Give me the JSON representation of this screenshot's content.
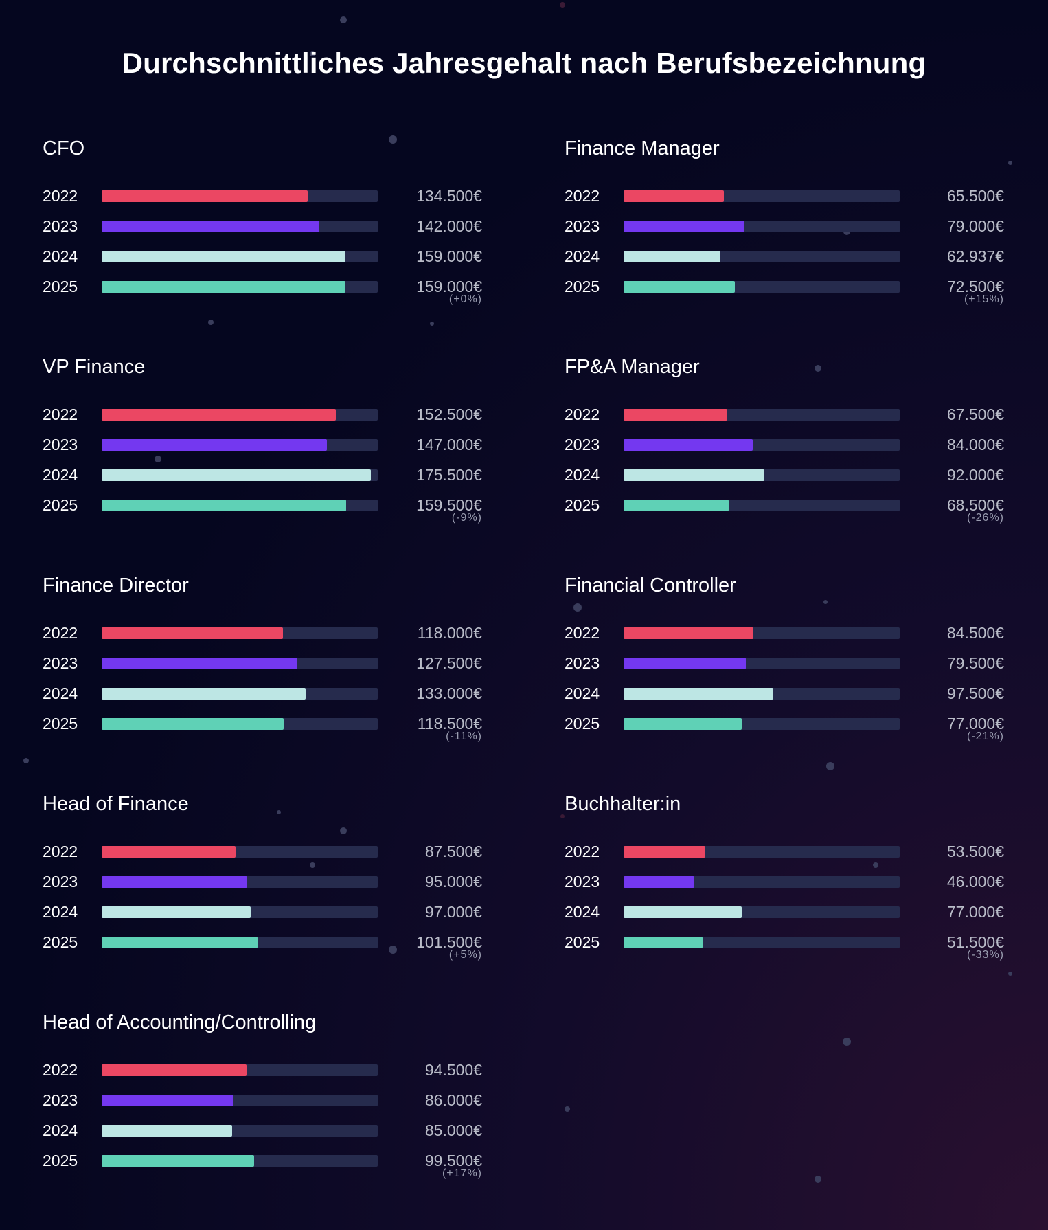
{
  "title": "Durchschnittliches Jahresgehalt nach Berufsbezeichnung",
  "colors": {
    "background": "#05061f",
    "track": "#262b4d",
    "2022": "#eb4763",
    "2023": "#7438f0",
    "2024": "#bde6e4",
    "2025": "#5fd1b6"
  },
  "chart_data": [
    {
      "type": "bar",
      "orientation": "horizontal",
      "title": "CFO",
      "categories": [
        "2022",
        "2023",
        "2024",
        "2025"
      ],
      "values": [
        134500,
        142000,
        159000,
        159000
      ],
      "value_labels": [
        "134.500€",
        "142.000€",
        "159.000€",
        "159.000€"
      ],
      "change_label": "(+0%)",
      "xlim": [
        0,
        180000
      ]
    },
    {
      "type": "bar",
      "orientation": "horizontal",
      "title": "Finance Manager",
      "categories": [
        "2022",
        "2023",
        "2024",
        "2025"
      ],
      "values": [
        65500,
        79000,
        62937,
        72500
      ],
      "value_labels": [
        "65.500€",
        "79.000€",
        "62.937€",
        "72.500€"
      ],
      "change_label": "(+15%)",
      "xlim": [
        0,
        180000
      ]
    },
    {
      "type": "bar",
      "orientation": "horizontal",
      "title": "VP Finance",
      "categories": [
        "2022",
        "2023",
        "2024",
        "2025"
      ],
      "values": [
        152500,
        147000,
        175500,
        159500
      ],
      "value_labels": [
        "152.500€",
        "147.000€",
        "175.500€",
        "159.500€"
      ],
      "change_label": "(-9%)",
      "xlim": [
        0,
        180000
      ]
    },
    {
      "type": "bar",
      "orientation": "horizontal",
      "title": "FP&A Manager",
      "categories": [
        "2022",
        "2023",
        "2024",
        "2025"
      ],
      "values": [
        67500,
        84000,
        92000,
        68500
      ],
      "value_labels": [
        "67.500€",
        "84.000€",
        "92.000€",
        "68.500€"
      ],
      "change_label": "(-26%)",
      "xlim": [
        0,
        180000
      ]
    },
    {
      "type": "bar",
      "orientation": "horizontal",
      "title": "Finance Director",
      "categories": [
        "2022",
        "2023",
        "2024",
        "2025"
      ],
      "values": [
        118000,
        127500,
        133000,
        118500
      ],
      "value_labels": [
        "118.000€",
        "127.500€",
        "133.000€",
        "118.500€"
      ],
      "change_label": "(-11%)",
      "xlim": [
        0,
        180000
      ]
    },
    {
      "type": "bar",
      "orientation": "horizontal",
      "title": "Financial Controller",
      "categories": [
        "2022",
        "2023",
        "2024",
        "2025"
      ],
      "values": [
        84500,
        79500,
        97500,
        77000
      ],
      "value_labels": [
        "84.500€",
        "79.500€",
        "97.500€",
        "77.000€"
      ],
      "change_label": "(-21%)",
      "xlim": [
        0,
        180000
      ]
    },
    {
      "type": "bar",
      "orientation": "horizontal",
      "title": "Head of Finance",
      "categories": [
        "2022",
        "2023",
        "2024",
        "2025"
      ],
      "values": [
        87500,
        95000,
        97000,
        101500
      ],
      "value_labels": [
        "87.500€",
        "95.000€",
        "97.000€",
        "101.500€"
      ],
      "change_label": "(+5%)",
      "xlim": [
        0,
        180000
      ]
    },
    {
      "type": "bar",
      "orientation": "horizontal",
      "title": "Buchhalter:in",
      "categories": [
        "2022",
        "2023",
        "2024",
        "2025"
      ],
      "values": [
        53500,
        46000,
        77000,
        51500
      ],
      "value_labels": [
        "53.500€",
        "46.000€",
        "77.000€",
        "51.500€"
      ],
      "change_label": "(-33%)",
      "xlim": [
        0,
        180000
      ]
    },
    {
      "type": "bar",
      "orientation": "horizontal",
      "title": "Head of Accounting/Controlling",
      "categories": [
        "2022",
        "2023",
        "2024",
        "2025"
      ],
      "values": [
        94500,
        86000,
        85000,
        99500
      ],
      "value_labels": [
        "94.500€",
        "86.000€",
        "85.000€",
        "99.500€"
      ],
      "change_label": "(+17%)",
      "xlim": [
        0,
        180000
      ]
    }
  ]
}
